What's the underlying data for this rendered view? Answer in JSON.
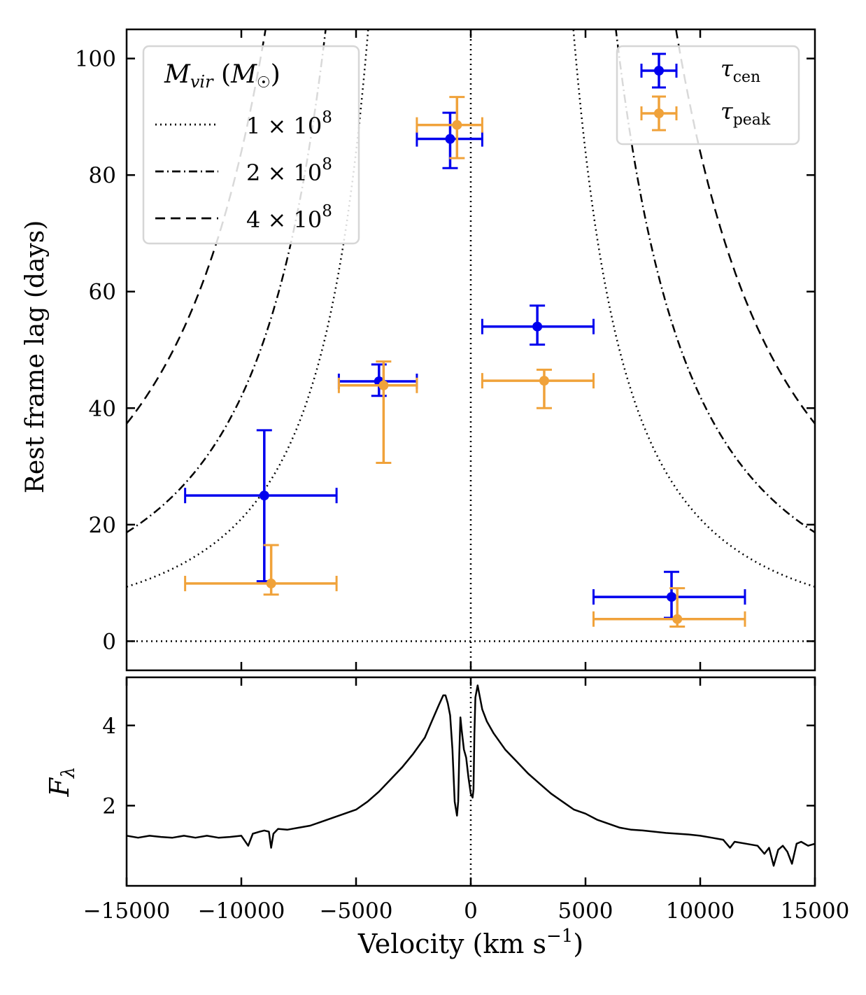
{
  "chart_data": [
    {
      "type": "scatter",
      "panel": "top",
      "xlabel": "",
      "ylabel": "Rest frame lag (days)",
      "xlim": [
        -15000,
        15000
      ],
      "ylim": [
        -5,
        105
      ],
      "xticks": [
        -10000,
        -5000,
        0,
        5000,
        10000
      ],
      "yticks": [
        0,
        20,
        40,
        60,
        80,
        100
      ],
      "ytick_labels": [
        "0",
        "20",
        "40",
        "60",
        "80",
        "100"
      ],
      "reference_lines": [
        {
          "orientation": "horizontal",
          "value": 0,
          "style": "dotted"
        },
        {
          "orientation": "vertical",
          "value": 0,
          "style": "dotted"
        }
      ],
      "virial_legend": {
        "title": "M_vir (M_☉)",
        "title_main": "M",
        "title_sub": "vir",
        "title_unit": "M",
        "title_unit_sub": "☉",
        "entries": [
          {
            "mantissa": "1 × 10",
            "exponent": "8",
            "style": "dotted"
          },
          {
            "mantissa": "2 × 10",
            "exponent": "8",
            "style": "dashdot"
          },
          {
            "mantissa": "4 × 10",
            "exponent": "8",
            "style": "dashed"
          }
        ]
      },
      "virial_curves": [
        {
          "name": "1e8",
          "mass": 100000000,
          "style": "dotted",
          "k_days_kms2": 2100000000
        },
        {
          "name": "2e8",
          "mass": 200000000,
          "style": "dashdot",
          "k_days_kms2": 4200000000
        },
        {
          "name": "4e8",
          "mass": 400000000,
          "style": "dashed",
          "k_days_kms2": 8400000000
        }
      ],
      "series": [
        {
          "name": "tau_cen",
          "label_main": "τ",
          "label_sub": "cen",
          "color": "#0000ee",
          "points": [
            {
              "x": -9000,
              "xlo": -12450,
              "xhi": -5850,
              "y": 25.0,
              "ylo": 10.3,
              "yhi": 36.2
            },
            {
              "x": -4000,
              "xlo": -5750,
              "xhi": -2350,
              "y": 44.6,
              "ylo": 42.1,
              "yhi": 47.5
            },
            {
              "x": -900,
              "xlo": -2350,
              "xhi": 500,
              "y": 86.2,
              "ylo": 81.2,
              "yhi": 90.7
            },
            {
              "x": 2900,
              "xlo": 500,
              "xhi": 5350,
              "y": 54.0,
              "ylo": 50.9,
              "yhi": 57.6
            },
            {
              "x": 8750,
              "xlo": 5350,
              "xhi": 11950,
              "y": 7.6,
              "ylo": 4.0,
              "yhi": 11.9
            }
          ]
        },
        {
          "name": "tau_peak",
          "label_main": "τ",
          "label_sub": "peak",
          "color": "#f0a23a",
          "points": [
            {
              "x": -8700,
              "xlo": -12450,
              "xhi": -5850,
              "y": 9.9,
              "ylo": 8.0,
              "yhi": 16.5
            },
            {
              "x": -3800,
              "xlo": -5750,
              "xhi": -2350,
              "y": 43.9,
              "ylo": 30.6,
              "yhi": 48.0
            },
            {
              "x": -600,
              "xlo": -2350,
              "xhi": 500,
              "y": 88.6,
              "ylo": 82.9,
              "yhi": 93.4
            },
            {
              "x": 3200,
              "xlo": 500,
              "xhi": 5350,
              "y": 44.7,
              "ylo": 40.0,
              "yhi": 46.6
            },
            {
              "x": 9000,
              "xlo": 5350,
              "xhi": 11950,
              "y": 3.8,
              "ylo": 2.5,
              "yhi": 9.1
            }
          ]
        }
      ]
    },
    {
      "type": "line",
      "panel": "bottom",
      "xlabel": "Velocity (km s^-1)",
      "xlabel_text": "Velocity (km s",
      "xlabel_exp": "−1",
      "xlabel_close": ")",
      "ylabel": "F_λ",
      "ylabel_main": "F",
      "ylabel_sub": "λ",
      "xlim": [
        -15000,
        15000
      ],
      "ylim": [
        0.0,
        5.2
      ],
      "xticks": [
        -15000,
        -10000,
        -5000,
        0,
        5000,
        10000,
        15000
      ],
      "xtick_labels": [
        "−15000",
        "−10000",
        "−5000",
        "0",
        "5000",
        "10000",
        "15000"
      ],
      "yticks": [
        2,
        4
      ],
      "ytick_labels": [
        "2",
        "4"
      ],
      "reference_lines": [
        {
          "orientation": "vertical",
          "value": 0,
          "style": "dotted"
        }
      ],
      "series": [
        {
          "name": "spectrum",
          "color": "#000000",
          "x": [
            -15000,
            -14500,
            -14000,
            -13500,
            -13000,
            -12500,
            -12000,
            -11500,
            -11000,
            -10500,
            -10000,
            -9700,
            -9500,
            -9200,
            -9000,
            -8800,
            -8700,
            -8600,
            -8400,
            -8000,
            -7500,
            -7000,
            -6500,
            -6000,
            -5500,
            -5000,
            -4500,
            -4000,
            -3500,
            -3000,
            -2500,
            -2000,
            -1700,
            -1400,
            -1200,
            -1100,
            -1000,
            -900,
            -800,
            -700,
            -600,
            -550,
            -500,
            -450,
            -400,
            -300,
            -200,
            -100,
            0,
            80,
            120,
            160,
            200,
            300,
            400,
            500,
            700,
            1000,
            1500,
            2000,
            2500,
            3000,
            3500,
            4000,
            4500,
            5000,
            5500,
            6000,
            6500,
            7000,
            7500,
            8000,
            8500,
            9000,
            9500,
            10000,
            10500,
            11000,
            11300,
            11500,
            12000,
            12500,
            12800,
            13000,
            13200,
            13400,
            13600,
            13800,
            14000,
            14200,
            14400,
            14700,
            15000
          ],
          "y": [
            1.25,
            1.2,
            1.25,
            1.22,
            1.2,
            1.25,
            1.2,
            1.25,
            1.2,
            1.22,
            1.25,
            1.0,
            1.3,
            1.35,
            1.38,
            1.35,
            0.95,
            1.3,
            1.42,
            1.4,
            1.45,
            1.5,
            1.6,
            1.7,
            1.8,
            1.9,
            2.1,
            2.35,
            2.65,
            2.95,
            3.3,
            3.7,
            4.1,
            4.5,
            4.75,
            4.75,
            4.55,
            4.25,
            3.4,
            2.1,
            1.75,
            2.1,
            3.3,
            4.2,
            3.9,
            3.4,
            3.2,
            2.7,
            2.3,
            2.2,
            2.4,
            3.8,
            4.7,
            5.0,
            4.7,
            4.4,
            4.1,
            3.8,
            3.4,
            3.1,
            2.8,
            2.55,
            2.3,
            2.1,
            1.9,
            1.8,
            1.65,
            1.55,
            1.45,
            1.4,
            1.38,
            1.35,
            1.32,
            1.3,
            1.28,
            1.25,
            1.2,
            1.15,
            0.95,
            1.1,
            1.05,
            1.0,
            0.8,
            0.95,
            0.5,
            0.9,
            1.0,
            0.85,
            0.55,
            1.05,
            1.1,
            1.0,
            1.05
          ]
        }
      ]
    }
  ]
}
